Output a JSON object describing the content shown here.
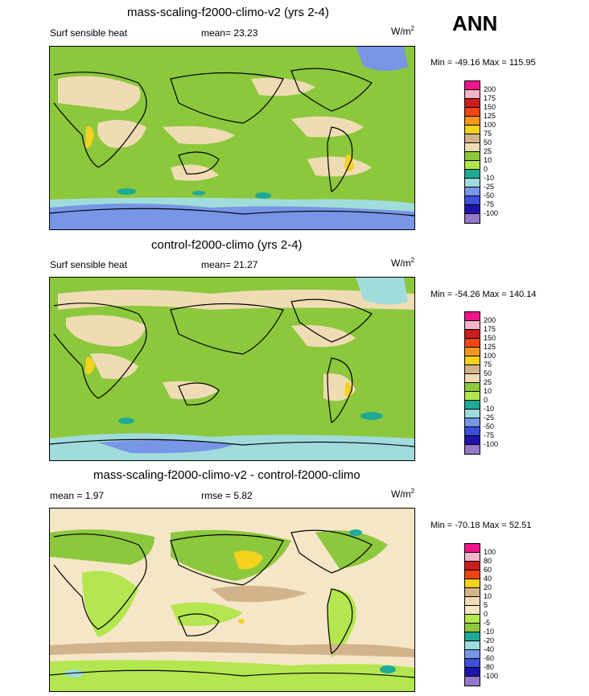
{
  "season": "ANN",
  "panels": [
    {
      "title": "mass-scaling-f2000-climo-v2 (yrs 2-4)",
      "left_label": "Surf sensible heat",
      "mid_label": "mean=  23.23",
      "units_base": "W/m",
      "units_exp": "2",
      "minmax": "Min = -49.16 Max = 115.95",
      "levels": [
        "200",
        "175",
        "150",
        "125",
        "100",
        "75",
        "50",
        "25",
        "10",
        "0",
        "-10",
        "-25",
        "-50",
        "-75",
        "-100"
      ],
      "colors": [
        "#f0148c",
        "#f5b4c8",
        "#c81e1e",
        "#f04614",
        "#f5961e",
        "#f5d21e",
        "#d2b48c",
        "#f0dcb4",
        "#8cc83c",
        "#b4e650",
        "#1eaa96",
        "#a0dcdc",
        "#7896e6",
        "#3c50dc",
        "#1e14aa",
        "#9678c8"
      ]
    },
    {
      "title": "control-f2000-climo (yrs 2-4)",
      "left_label": "Surf sensible heat",
      "mid_label": "mean=  21.27",
      "units_base": "W/m",
      "units_exp": "2",
      "minmax": "Min = -54.26 Max = 140.14",
      "levels": [
        "200",
        "175",
        "150",
        "125",
        "100",
        "75",
        "50",
        "25",
        "10",
        "0",
        "-10",
        "-25",
        "-50",
        "-75",
        "-100"
      ],
      "colors": [
        "#f0148c",
        "#f5b4c8",
        "#c81e1e",
        "#f04614",
        "#f5961e",
        "#f5d21e",
        "#d2b48c",
        "#f0dcb4",
        "#8cc83c",
        "#b4e650",
        "#1eaa96",
        "#a0dcdc",
        "#7896e6",
        "#3c50dc",
        "#1e14aa",
        "#9678c8"
      ]
    },
    {
      "title": "mass-scaling-f2000-climo-v2 - control-f2000-climo",
      "left_label": "mean =   1.97",
      "mid_label": "rmse =   5.82",
      "units_base": "W/m",
      "units_exp": "2",
      "minmax": "Min = -70.18 Max =  52.51",
      "levels": [
        "100",
        "80",
        "60",
        "40",
        "20",
        "10",
        "5",
        "0",
        "-5",
        "-10",
        "-20",
        "-40",
        "-60",
        "-80",
        "-100"
      ],
      "colors": [
        "#f0148c",
        "#f5b4c8",
        "#c81e1e",
        "#f04614",
        "#f5d21e",
        "#d2b48c",
        "#f0dcb4",
        "#f5e6c8",
        "#b4e650",
        "#8cc83c",
        "#1eaa96",
        "#a0dcdc",
        "#7896e6",
        "#3c50dc",
        "#1e14aa",
        "#9678c8"
      ]
    }
  ]
}
